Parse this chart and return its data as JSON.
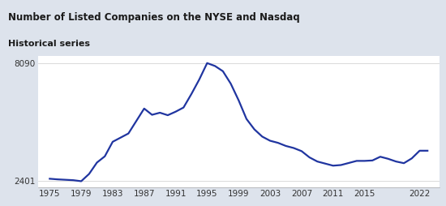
{
  "title": "Number of Listed Companies on the NYSE and Nasdaq",
  "subtitle": "Historical series",
  "title_bg_color": "#f5f0d8",
  "chart_bg_color": "#dde3ec",
  "plot_bg_color": "#ffffff",
  "line_color": "#2035a0",
  "line_width": 1.6,
  "yticks": [
    2401,
    8090
  ],
  "xticks": [
    1975,
    1979,
    1983,
    1987,
    1991,
    1995,
    1999,
    2003,
    2007,
    2011,
    2015,
    2022
  ],
  "ylim": [
    2100,
    8450
  ],
  "xlim": [
    1973.5,
    2024.5
  ],
  "title_fontsize": 8.5,
  "subtitle_fontsize": 8.0,
  "tick_fontsize": 7.5,
  "years": [
    1975,
    1976,
    1977,
    1978,
    1979,
    1980,
    1981,
    1982,
    1983,
    1984,
    1985,
    1986,
    1987,
    1988,
    1989,
    1990,
    1991,
    1992,
    1993,
    1994,
    1995,
    1996,
    1997,
    1998,
    1999,
    2000,
    2001,
    2002,
    2003,
    2004,
    2005,
    2006,
    2007,
    2008,
    2009,
    2010,
    2011,
    2012,
    2013,
    2014,
    2015,
    2016,
    2017,
    2018,
    2019,
    2020,
    2021,
    2022,
    2023
  ],
  "values": [
    2520,
    2490,
    2470,
    2450,
    2401,
    2750,
    3300,
    3600,
    4300,
    4500,
    4700,
    5300,
    5900,
    5600,
    5700,
    5580,
    5750,
    5950,
    6600,
    7300,
    8090,
    7950,
    7700,
    7100,
    6300,
    5400,
    4900,
    4550,
    4350,
    4250,
    4100,
    4000,
    3850,
    3550,
    3350,
    3250,
    3150,
    3180,
    3280,
    3380,
    3380,
    3400,
    3580,
    3480,
    3350,
    3270,
    3500,
    3870,
    3870
  ]
}
